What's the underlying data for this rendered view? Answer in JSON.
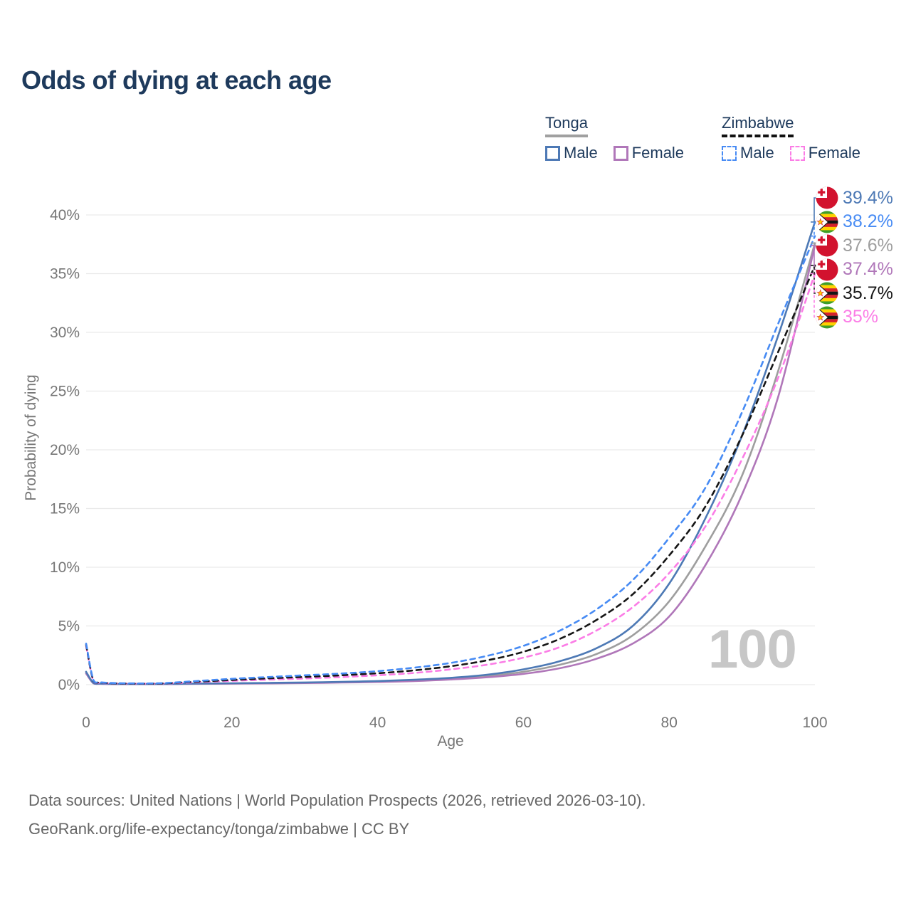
{
  "title": "Odds of dying at each age",
  "legend": {
    "groups": [
      {
        "name": "Tonga",
        "dashed": false,
        "underline_color": "#a0a0a0",
        "items": [
          {
            "label": "Male",
            "color": "#4d79b5",
            "dashed": false
          },
          {
            "label": "Female",
            "color": "#b077b9",
            "dashed": false
          }
        ]
      },
      {
        "name": "Zimbabwe",
        "dashed": true,
        "underline_color": "#111111",
        "items": [
          {
            "label": "Male",
            "color": "#478bf4",
            "dashed": true
          },
          {
            "label": "Female",
            "color": "#fb7de6",
            "dashed": true
          }
        ]
      }
    ]
  },
  "watermark": "100",
  "footer": {
    "line1": "Data sources: United Nations | World Population Prospects (2026, retrieved 2026-03-10).",
    "line2": "GeoRank.org/life-expectancy/tonga/zimbabwe | CC BY"
  },
  "chart_data": {
    "type": "line",
    "xlabel": "Age",
    "ylabel": "Probability of dying",
    "xlim": [
      0,
      100
    ],
    "ylim": [
      0,
      40
    ],
    "grid": true,
    "x_ticks": [
      {
        "label": "0",
        "value": 0
      },
      {
        "label": "20",
        "value": 20
      },
      {
        "label": "40",
        "value": 40
      },
      {
        "label": "60",
        "value": 60
      },
      {
        "label": "80",
        "value": 80
      },
      {
        "label": "100",
        "value": 100
      }
    ],
    "y_ticks": [
      {
        "label": "0%",
        "value": 0
      },
      {
        "label": "5%",
        "value": 5
      },
      {
        "label": "10%",
        "value": 10
      },
      {
        "label": "15%",
        "value": 15
      },
      {
        "label": "20%",
        "value": 20
      },
      {
        "label": "25%",
        "value": 25
      },
      {
        "label": "30%",
        "value": 30
      },
      {
        "label": "35%",
        "value": 35
      },
      {
        "label": "40%",
        "value": 40
      }
    ],
    "x": [
      0,
      1,
      2,
      5,
      10,
      15,
      20,
      25,
      30,
      35,
      40,
      45,
      50,
      55,
      60,
      65,
      70,
      75,
      80,
      85,
      90,
      95,
      100
    ],
    "series": [
      {
        "name": "Tonga Male",
        "country": "Tonga",
        "sex": "Male",
        "color": "#4d79b5",
        "dashed": false,
        "flag": "tonga",
        "end_label": "39.4%",
        "values": [
          1.1,
          0.15,
          0.09,
          0.06,
          0.06,
          0.09,
          0.12,
          0.15,
          0.19,
          0.24,
          0.31,
          0.42,
          0.58,
          0.85,
          1.3,
          2.0,
          3.1,
          5.0,
          8.6,
          14.2,
          21.2,
          29.8,
          39.4
        ]
      },
      {
        "name": "Tonga Female",
        "country": "Tonga",
        "sex": "Female",
        "color": "#b077b9",
        "dashed": false,
        "flag": "tonga",
        "end_label": "37.4%",
        "values": [
          0.95,
          0.12,
          0.07,
          0.05,
          0.05,
          0.07,
          0.09,
          0.11,
          0.14,
          0.18,
          0.23,
          0.31,
          0.44,
          0.63,
          0.92,
          1.4,
          2.2,
          3.5,
          5.8,
          10.2,
          16.2,
          24.6,
          37.4
        ]
      },
      {
        "name": "Tonga Both sexes",
        "country": "Tonga",
        "sex": "Both",
        "color": "#9e9e9e",
        "dashed": false,
        "flag": "tonga",
        "end_label": "37.6%",
        "values": [
          1.0,
          0.13,
          0.08,
          0.055,
          0.055,
          0.08,
          0.1,
          0.13,
          0.16,
          0.21,
          0.27,
          0.36,
          0.5,
          0.73,
          1.1,
          1.7,
          2.6,
          4.2,
          7.1,
          11.8,
          17.8,
          26.8,
          37.6
        ]
      },
      {
        "name": "Zimbabwe Male",
        "country": "Zimbabwe",
        "sex": "Male",
        "color": "#478bf4",
        "dashed": true,
        "flag": "zimbabwe",
        "end_label": "38.2%",
        "values": [
          3.5,
          0.4,
          0.2,
          0.12,
          0.12,
          0.3,
          0.5,
          0.65,
          0.8,
          0.95,
          1.15,
          1.45,
          1.85,
          2.45,
          3.3,
          4.6,
          6.4,
          8.9,
          12.5,
          16.8,
          23.2,
          30.8,
          38.2
        ]
      },
      {
        "name": "Zimbabwe Female",
        "country": "Zimbabwe",
        "sex": "Female",
        "color": "#fb7de6",
        "dashed": true,
        "flag": "zimbabwe",
        "end_label": "35%",
        "values": [
          3.3,
          0.33,
          0.16,
          0.09,
          0.09,
          0.2,
          0.33,
          0.43,
          0.53,
          0.65,
          0.8,
          1.0,
          1.3,
          1.7,
          2.3,
          3.2,
          4.6,
          6.6,
          9.5,
          13.5,
          19.2,
          26.2,
          35.0
        ]
      },
      {
        "name": "Zimbabwe Both sexes",
        "country": "Zimbabwe",
        "sex": "Both",
        "color": "#161616",
        "dashed": true,
        "flag": "zimbabwe",
        "end_label": "35.7%",
        "values": [
          3.4,
          0.36,
          0.18,
          0.1,
          0.1,
          0.25,
          0.4,
          0.54,
          0.66,
          0.8,
          0.97,
          1.22,
          1.57,
          2.07,
          2.8,
          3.9,
          5.5,
          7.7,
          11.0,
          15.2,
          21.2,
          28.4,
          35.7
        ]
      }
    ],
    "draw_order": [
      "Tonga Both sexes",
      "Tonga Female",
      "Tonga Male",
      "Zimbabwe Female",
      "Zimbabwe Both sexes",
      "Zimbabwe Male"
    ],
    "end_label_order": [
      "Tonga Male",
      "Zimbabwe Male",
      "Tonga Both sexes",
      "Tonga Female",
      "Zimbabwe Both sexes",
      "Zimbabwe Female"
    ],
    "legend_position": "top-right"
  }
}
